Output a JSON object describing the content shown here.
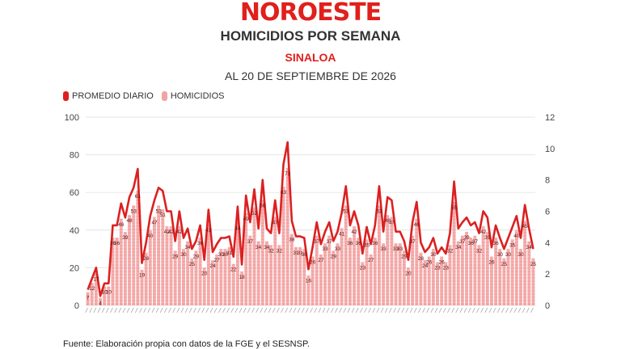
{
  "header": {
    "logo": "NOROESTE",
    "title": "HOMICIDIOS POR SEMANA",
    "subtitle": "SINALOA",
    "date": "AL 20 DE SEPTIEMBRE DE 2026"
  },
  "legend": {
    "line_label": "PROMEDIO DIARIO",
    "bar_label": "HOMICIDIOS"
  },
  "source": "Fuente: Elaboración propia con datos de la FGE y el SESNSP.",
  "colors": {
    "bar": "#f3a3a3",
    "line": "#dc2020",
    "brand": "#e0201c"
  },
  "chart_data": {
    "type": "bar",
    "title": "HOMICIDIOS POR SEMANA",
    "ylim": [
      0,
      100
    ],
    "y2lim": [
      0,
      12
    ],
    "yticks": [
      0,
      20,
      40,
      60,
      80,
      100
    ],
    "y2ticks": [
      0,
      2,
      4,
      6,
      8,
      10,
      12
    ],
    "grid": true,
    "legend_position": "top-left",
    "series": [
      {
        "name": "HOMICIDIOS",
        "type": "bar",
        "axis": "left",
        "values": [
          7,
          12,
          17,
          4,
          10,
          10,
          36,
          36,
          46,
          39,
          48,
          53,
          61,
          19,
          28,
          40,
          47,
          53,
          51,
          42,
          42,
          29,
          42,
          30,
          34,
          25,
          29,
          36,
          20,
          43,
          24,
          27,
          30,
          30,
          31,
          22,
          44,
          18,
          49,
          37,
          52,
          34,
          56,
          34,
          32,
          47,
          32,
          63,
          73,
          38,
          31,
          31,
          30,
          16,
          26,
          37,
          27,
          33,
          37,
          29,
          33,
          41,
          53,
          36,
          42,
          36,
          23,
          35,
          27,
          36,
          53,
          33,
          48,
          47,
          33,
          33,
          29,
          20,
          37,
          46,
          28,
          24,
          26,
          30,
          23,
          26,
          23,
          32,
          55,
          34,
          37,
          39,
          36,
          37,
          32,
          42,
          39,
          26,
          36,
          30,
          25,
          30,
          35,
          40,
          30,
          45,
          34,
          25
        ]
      },
      {
        "name": "PROMEDIO DIARIO",
        "type": "line",
        "axis": "right",
        "values": [
          1,
          1.7,
          2.4,
          0.6,
          1.4,
          1.4,
          5.1,
          5.1,
          6.5,
          5.6,
          6.9,
          7.5,
          8.7,
          2.7,
          4,
          5.7,
          6.7,
          7.5,
          7.3,
          6,
          6,
          4.1,
          6,
          4.3,
          4.9,
          3.6,
          4.1,
          5.1,
          2.9,
          6.1,
          3.4,
          3.9,
          4.3,
          4.3,
          4.4,
          3.1,
          6.3,
          2.6,
          7,
          5.3,
          7.4,
          4.9,
          8,
          4.9,
          4.6,
          6.7,
          4.6,
          9,
          10.4,
          5.4,
          4.4,
          4.4,
          4.3,
          2.3,
          3.7,
          5.3,
          3.9,
          4.7,
          5.3,
          4.1,
          4.7,
          5.9,
          7.6,
          5.1,
          6,
          5.1,
          3.3,
          5,
          3.9,
          5.1,
          7.6,
          4.7,
          6.9,
          6.7,
          4.7,
          4.7,
          4.1,
          2.9,
          5.3,
          6.6,
          4,
          3.4,
          3.7,
          4.3,
          3.3,
          3.7,
          3.3,
          4.6,
          7.9,
          4.9,
          5.3,
          5.6,
          5.1,
          5.3,
          4.6,
          6,
          5.6,
          3.7,
          5.1,
          4.3,
          3.6,
          4.3,
          5,
          5.7,
          4.3,
          6.4,
          4.9,
          3.6
        ]
      }
    ]
  }
}
